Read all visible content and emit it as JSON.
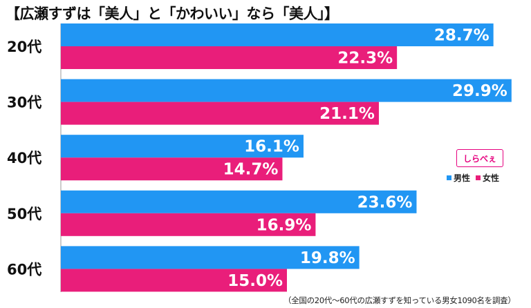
{
  "title": "【広瀬すずは「美人」と「かわいい」なら「美人」】",
  "logo_text": "しらべぇ",
  "footnote": "（全国の20代〜60代の広瀬すずを知っている男女1090名を調査）",
  "colors": {
    "male": "#2196f3",
    "female": "#e91e7a"
  },
  "chart_data": {
    "type": "bar",
    "orientation": "horizontal",
    "categories": [
      "20代",
      "30代",
      "40代",
      "50代",
      "60代"
    ],
    "series": [
      {
        "name": "男性",
        "values": [
          28.7,
          29.9,
          16.1,
          23.6,
          19.8
        ]
      },
      {
        "name": "女性",
        "values": [
          22.3,
          21.1,
          14.7,
          16.9,
          15.0
        ]
      }
    ],
    "value_suffix": "%",
    "xlim": [
      0,
      32
    ],
    "grid": false,
    "legend_position": "right"
  }
}
